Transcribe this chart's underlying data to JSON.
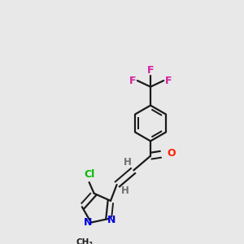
{
  "background_color": "#e8e8e8",
  "bond_color": "#1a1a1a",
  "atom_colors": {
    "F": "#d020a0",
    "Cl": "#00bb00",
    "O": "#ff2000",
    "N": "#0000dd",
    "H": "#707070",
    "C": "#1a1a1a"
  },
  "figsize": [
    3.0,
    3.0
  ],
  "dpi": 100
}
